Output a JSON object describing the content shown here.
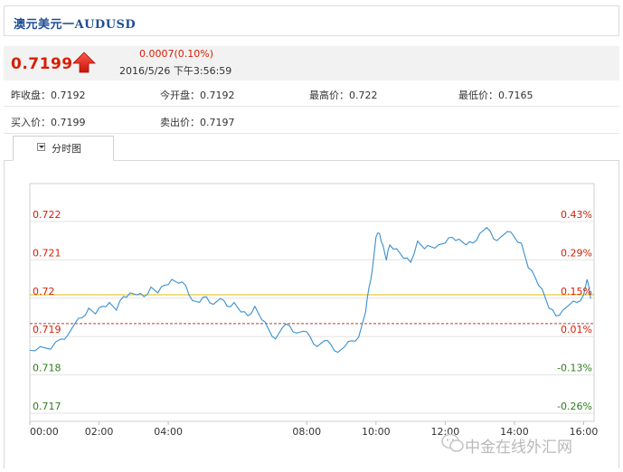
{
  "header": {
    "title": "澳元美元一AUDUSD"
  },
  "quote": {
    "price": "0.7199",
    "direction": "up",
    "change": "0.0007(0.10%)",
    "timestamp": "2016/5/26 下午3:56:59"
  },
  "stats": {
    "prev_close": "昨收盘：0.7192",
    "open": "今开盘：0.7192",
    "high": "最高价：0.722",
    "low": "最低价：0.7165",
    "bid": "买入价：0.7199",
    "ask": "卖出价：0.7197"
  },
  "tab": {
    "label": "分时图"
  },
  "watermark": {
    "text": "中金在线外汇网"
  },
  "colors": {
    "up": "#d81e06",
    "down": "#2e7d18",
    "line": "#3a8fd0",
    "reference": "#e0c000",
    "prev_close_line": "#c0392b",
    "brand": "#1f4e95"
  },
  "chart_data": {
    "type": "line",
    "title": "",
    "xlabel": "",
    "ylabel": "",
    "x_ticks": [
      "00:00",
      "02:00",
      "04:00",
      "08:00",
      "10:00",
      "12:00",
      "14:00",
      "16:00"
    ],
    "y_ticks": [
      "0.722",
      "0.721",
      "0.72",
      "0.719",
      "0.718",
      "0.717"
    ],
    "y_tick_values": [
      0.722,
      0.721,
      0.72,
      0.719,
      0.718,
      0.717
    ],
    "y_tick_colors": [
      "up",
      "up",
      "up",
      "up",
      "down",
      "down"
    ],
    "percent_ticks": [
      "0.43%",
      "0.29%",
      "0.15%",
      "0.01%",
      "-0.13%",
      "-0.26%"
    ],
    "percent_colors": [
      "up",
      "up",
      "up",
      "up",
      "down",
      "down"
    ],
    "ylim": [
      0.7166,
      0.7228
    ],
    "xlim_hours": [
      0,
      16.3
    ],
    "reference_line": 0.7199,
    "prev_close_line": 0.71915,
    "grid": true,
    "series": [
      {
        "x": [
          0,
          0.3,
          0.6,
          0.9,
          1.1,
          1.3,
          1.5,
          1.7,
          1.9,
          2.1,
          2.3,
          2.5,
          2.7,
          2.9,
          3.1,
          3.3,
          3.5,
          3.7,
          3.9,
          4.1,
          4.3,
          4.5,
          4.7,
          4.9,
          5.1,
          5.3,
          5.5,
          5.7,
          5.9,
          6.1,
          6.3,
          6.5,
          6.7,
          6.9,
          7.1,
          7.3,
          7.5,
          7.7,
          7.9,
          8.1,
          8.3,
          8.5,
          8.7,
          8.9,
          9.1,
          9.3,
          9.5,
          9.7,
          9.8,
          9.9,
          10.0,
          10.1,
          10.2,
          10.3,
          10.4,
          10.6,
          10.8,
          11.0,
          11.2,
          11.4,
          11.6,
          11.8,
          12.0,
          12.2,
          12.4,
          12.6,
          12.8,
          13.0,
          13.2,
          13.4,
          13.6,
          13.8,
          14.0,
          14.2,
          14.4,
          14.6,
          14.8,
          15.0,
          15.2,
          15.4,
          15.6,
          15.8,
          16.0,
          16.1,
          16.2
        ],
        "y": [
          0.71845,
          0.71855,
          0.71848,
          0.71875,
          0.71885,
          0.71915,
          0.7193,
          0.71955,
          0.7194,
          0.7196,
          0.7197,
          0.7195,
          0.71985,
          0.71995,
          0.7199,
          0.71985,
          0.7201,
          0.71995,
          0.72015,
          0.7203,
          0.7202,
          0.72015,
          0.71975,
          0.7197,
          0.71985,
          0.71965,
          0.7198,
          0.7196,
          0.7197,
          0.71945,
          0.71935,
          0.7196,
          0.71925,
          0.719,
          0.71875,
          0.71905,
          0.7191,
          0.7189,
          0.71895,
          0.7188,
          0.71855,
          0.7187,
          0.7186,
          0.7184,
          0.71855,
          0.7187,
          0.7188,
          0.71945,
          0.7201,
          0.7206,
          0.7214,
          0.7215,
          0.7212,
          0.7208,
          0.7212,
          0.7211,
          0.72085,
          0.72075,
          0.7213,
          0.7211,
          0.72115,
          0.7212,
          0.72125,
          0.7214,
          0.72135,
          0.7212,
          0.72125,
          0.7215,
          0.72165,
          0.72135,
          0.7214,
          0.72155,
          0.7214,
          0.72125,
          0.7206,
          0.72035,
          0.72005,
          0.71955,
          0.71935,
          0.7195,
          0.71965,
          0.7197,
          0.7199,
          0.7203,
          0.7198
        ]
      }
    ]
  }
}
